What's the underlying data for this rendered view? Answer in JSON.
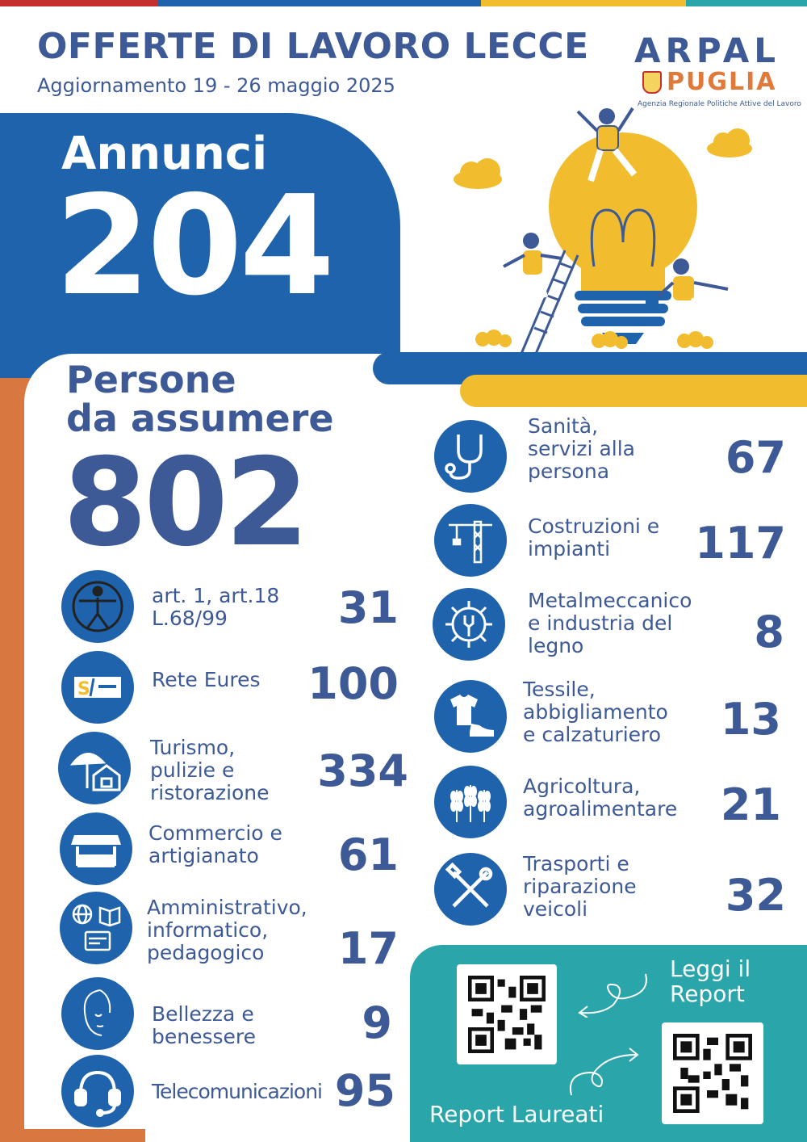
{
  "colors": {
    "blue": "#1f63ad",
    "navy": "#3d5a96",
    "orange": "#d8773f",
    "yellow": "#f1bd2e",
    "teal": "#2aa6ab",
    "red": "#c43030"
  },
  "header": {
    "title": "OFFERTE DI LAVORO LECCE",
    "subtitle": "Aggiornamento 19 - 26 maggio 2025"
  },
  "logo": {
    "line1": "ARPAL",
    "line2": "PUGLIA",
    "agency": "Agenzia Regionale Politiche Attive del Lavoro"
  },
  "annunci": {
    "label": "Annunci",
    "value": "204"
  },
  "persone": {
    "label_line1": "Persone",
    "label_line2": "da assumere",
    "value": "802"
  },
  "left_items": [
    {
      "icon": "accessibility-icon",
      "label": "art. 1, art.18\nL.68/99",
      "value": "31"
    },
    {
      "icon": "eures-logo-icon",
      "label": "Rete Eures",
      "value": "100"
    },
    {
      "icon": "umbrella-house-icon",
      "label": "Turismo,\npulizie e\nristorazione",
      "value": "334"
    },
    {
      "icon": "market-stall-icon",
      "label": "Commercio e\nartigianato",
      "value": "61"
    },
    {
      "icon": "globe-book-card-icon",
      "label": "Amministrativo,\ninformatico,\npedagogico",
      "value": "17"
    },
    {
      "icon": "face-icon",
      "label": "Bellezza e\nbenessere",
      "value": "9"
    },
    {
      "icon": "headset-icon",
      "label": "Telecomunicazioni",
      "value": "95"
    }
  ],
  "right_items": [
    {
      "icon": "stethoscope-icon",
      "label": "Sanità,\nservizi alla\npersona",
      "value": "67"
    },
    {
      "icon": "crane-icon",
      "label": "Costruzioni e\nimpianti",
      "value": "117"
    },
    {
      "icon": "gear-wrench-icon",
      "label": "Metalmeccanico\ne industria del\nlegno",
      "value": "8"
    },
    {
      "icon": "shirt-shoe-icon",
      "label": "Tessile,\nabbigliamento\ne calzaturiero",
      "value": "13"
    },
    {
      "icon": "wheat-icon",
      "label": "Agricoltura,\nagroalimentare",
      "value": "21"
    },
    {
      "icon": "tools-icon",
      "label": "Trasporti e\nriparazione\nveicoli",
      "value": "32"
    }
  ],
  "reports": {
    "read_report": "Leggi il\nReport",
    "graduates_report": "Report Laureati"
  }
}
